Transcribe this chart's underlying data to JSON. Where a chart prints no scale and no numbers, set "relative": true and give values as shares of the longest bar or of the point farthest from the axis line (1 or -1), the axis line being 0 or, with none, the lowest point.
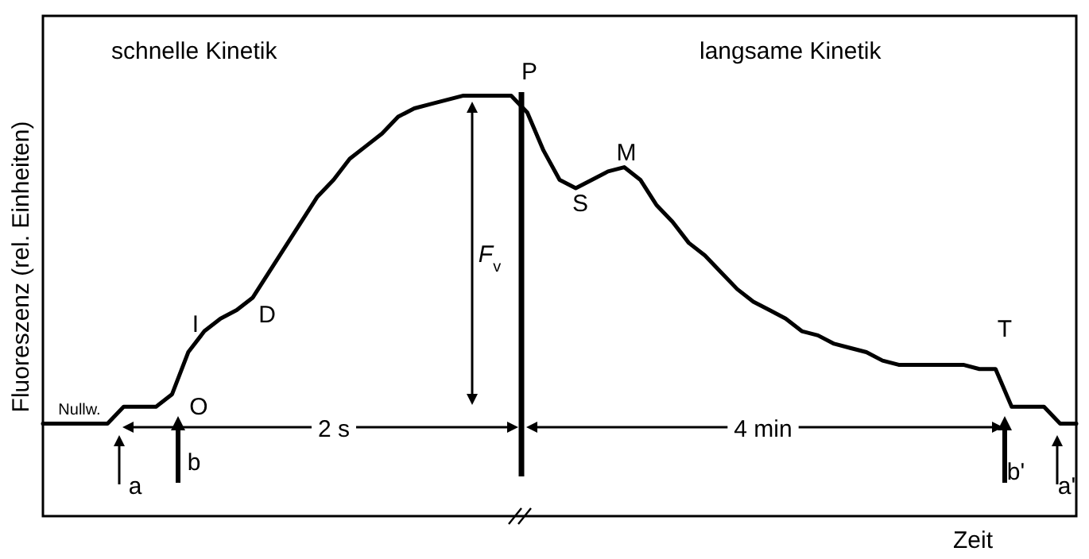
{
  "chart_data": {
    "type": "line",
    "xlabel": "Zeit",
    "ylabel": "Fluoreszenz (rel. Einheiten)",
    "relative": true,
    "marker": "none",
    "line_style": "solid",
    "categories": [
      null,
      null,
      null,
      null,
      null,
      null,
      null,
      null,
      null,
      null,
      null,
      null,
      null,
      null,
      null,
      null,
      null,
      null,
      null,
      null,
      null,
      null,
      null,
      null,
      null,
      null,
      null,
      null,
      null,
      null,
      null,
      null,
      null,
      null,
      null,
      null,
      null,
      null,
      null,
      null,
      null,
      null,
      null,
      null,
      null,
      null,
      null,
      null,
      null,
      null,
      null,
      null,
      null,
      null,
      null,
      null,
      null,
      null,
      null,
      null,
      null,
      null,
      null,
      null,
      null
    ],
    "series": [
      {
        "color": "#000000",
        "values": [
          0.22,
          0.22,
          0.22,
          0.22,
          0.22,
          0.26,
          0.26,
          0.26,
          0.29,
          0.39,
          0.44,
          0.47,
          0.49,
          0.52,
          0.58,
          0.64,
          0.7,
          0.76,
          0.8,
          0.85,
          0.88,
          0.91,
          0.95,
          0.97,
          0.98,
          0.99,
          1,
          1,
          1,
          1,
          0.96,
          0.87,
          0.8,
          0.78,
          0.8,
          0.82,
          0.83,
          0.8,
          0.74,
          0.7,
          0.65,
          0.62,
          0.58,
          0.54,
          0.51,
          0.49,
          0.47,
          0.44,
          0.43,
          0.41,
          0.4,
          0.39,
          0.37,
          0.36,
          0.36,
          0.36,
          0.36,
          0.36,
          0.35,
          0.35,
          0.26,
          0.26,
          0.26,
          0.22,
          0.22
        ]
      }
    ],
    "annotations": [
      "schnelle Kinetik",
      "langsame Kinetik",
      "P",
      "O",
      "I",
      "D",
      "S",
      "M",
      "T",
      "F$_{v}$",
      "Nullw.",
      "2 s",
      "4 min",
      "a",
      "b",
      "b'",
      "a'"
    ]
  }
}
